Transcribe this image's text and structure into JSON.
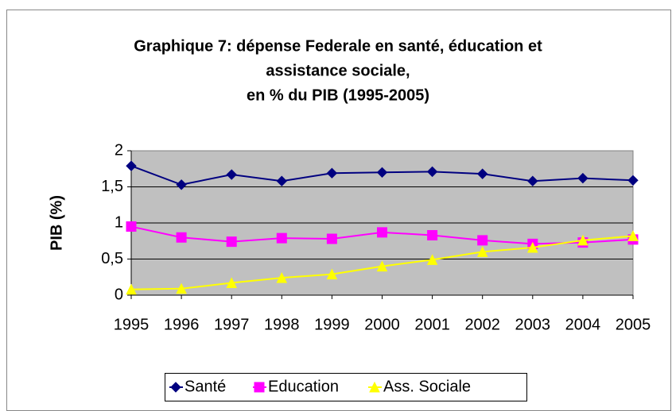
{
  "chart_data": {
    "type": "line",
    "title": [
      "Graphique 7: dépense Federale en santé, éducation et",
      "assistance sociale,",
      "en % du PIB (1995-2005)"
    ],
    "y_label": "PIB (%)",
    "categories": [
      "1995",
      "1996",
      "1997",
      "1998",
      "1999",
      "2000",
      "2001",
      "2002",
      "2003",
      "2004",
      "2005"
    ],
    "series": [
      {
        "name": "Santé",
        "color": "#000080",
        "marker": "diamond",
        "values": [
          1.79,
          1.53,
          1.67,
          1.58,
          1.69,
          1.7,
          1.71,
          1.68,
          1.58,
          1.62,
          1.59
        ]
      },
      {
        "name": "Education",
        "color": "#ff00ff",
        "marker": "square",
        "values": [
          0.95,
          0.8,
          0.74,
          0.79,
          0.78,
          0.87,
          0.83,
          0.76,
          0.71,
          0.73,
          0.77
        ]
      },
      {
        "name": "Ass. Sociale",
        "color": "#ffff00",
        "marker": "triangle",
        "values": [
          0.08,
          0.09,
          0.17,
          0.24,
          0.29,
          0.4,
          0.49,
          0.6,
          0.66,
          0.76,
          0.82
        ]
      }
    ],
    "ylim": [
      0,
      2
    ],
    "yticks": [
      0,
      {
        "value": 0.5,
        "label": "0,5"
      },
      1,
      {
        "value": 1.5,
        "label": "1,5"
      },
      2
    ],
    "legend": "bottom"
  }
}
